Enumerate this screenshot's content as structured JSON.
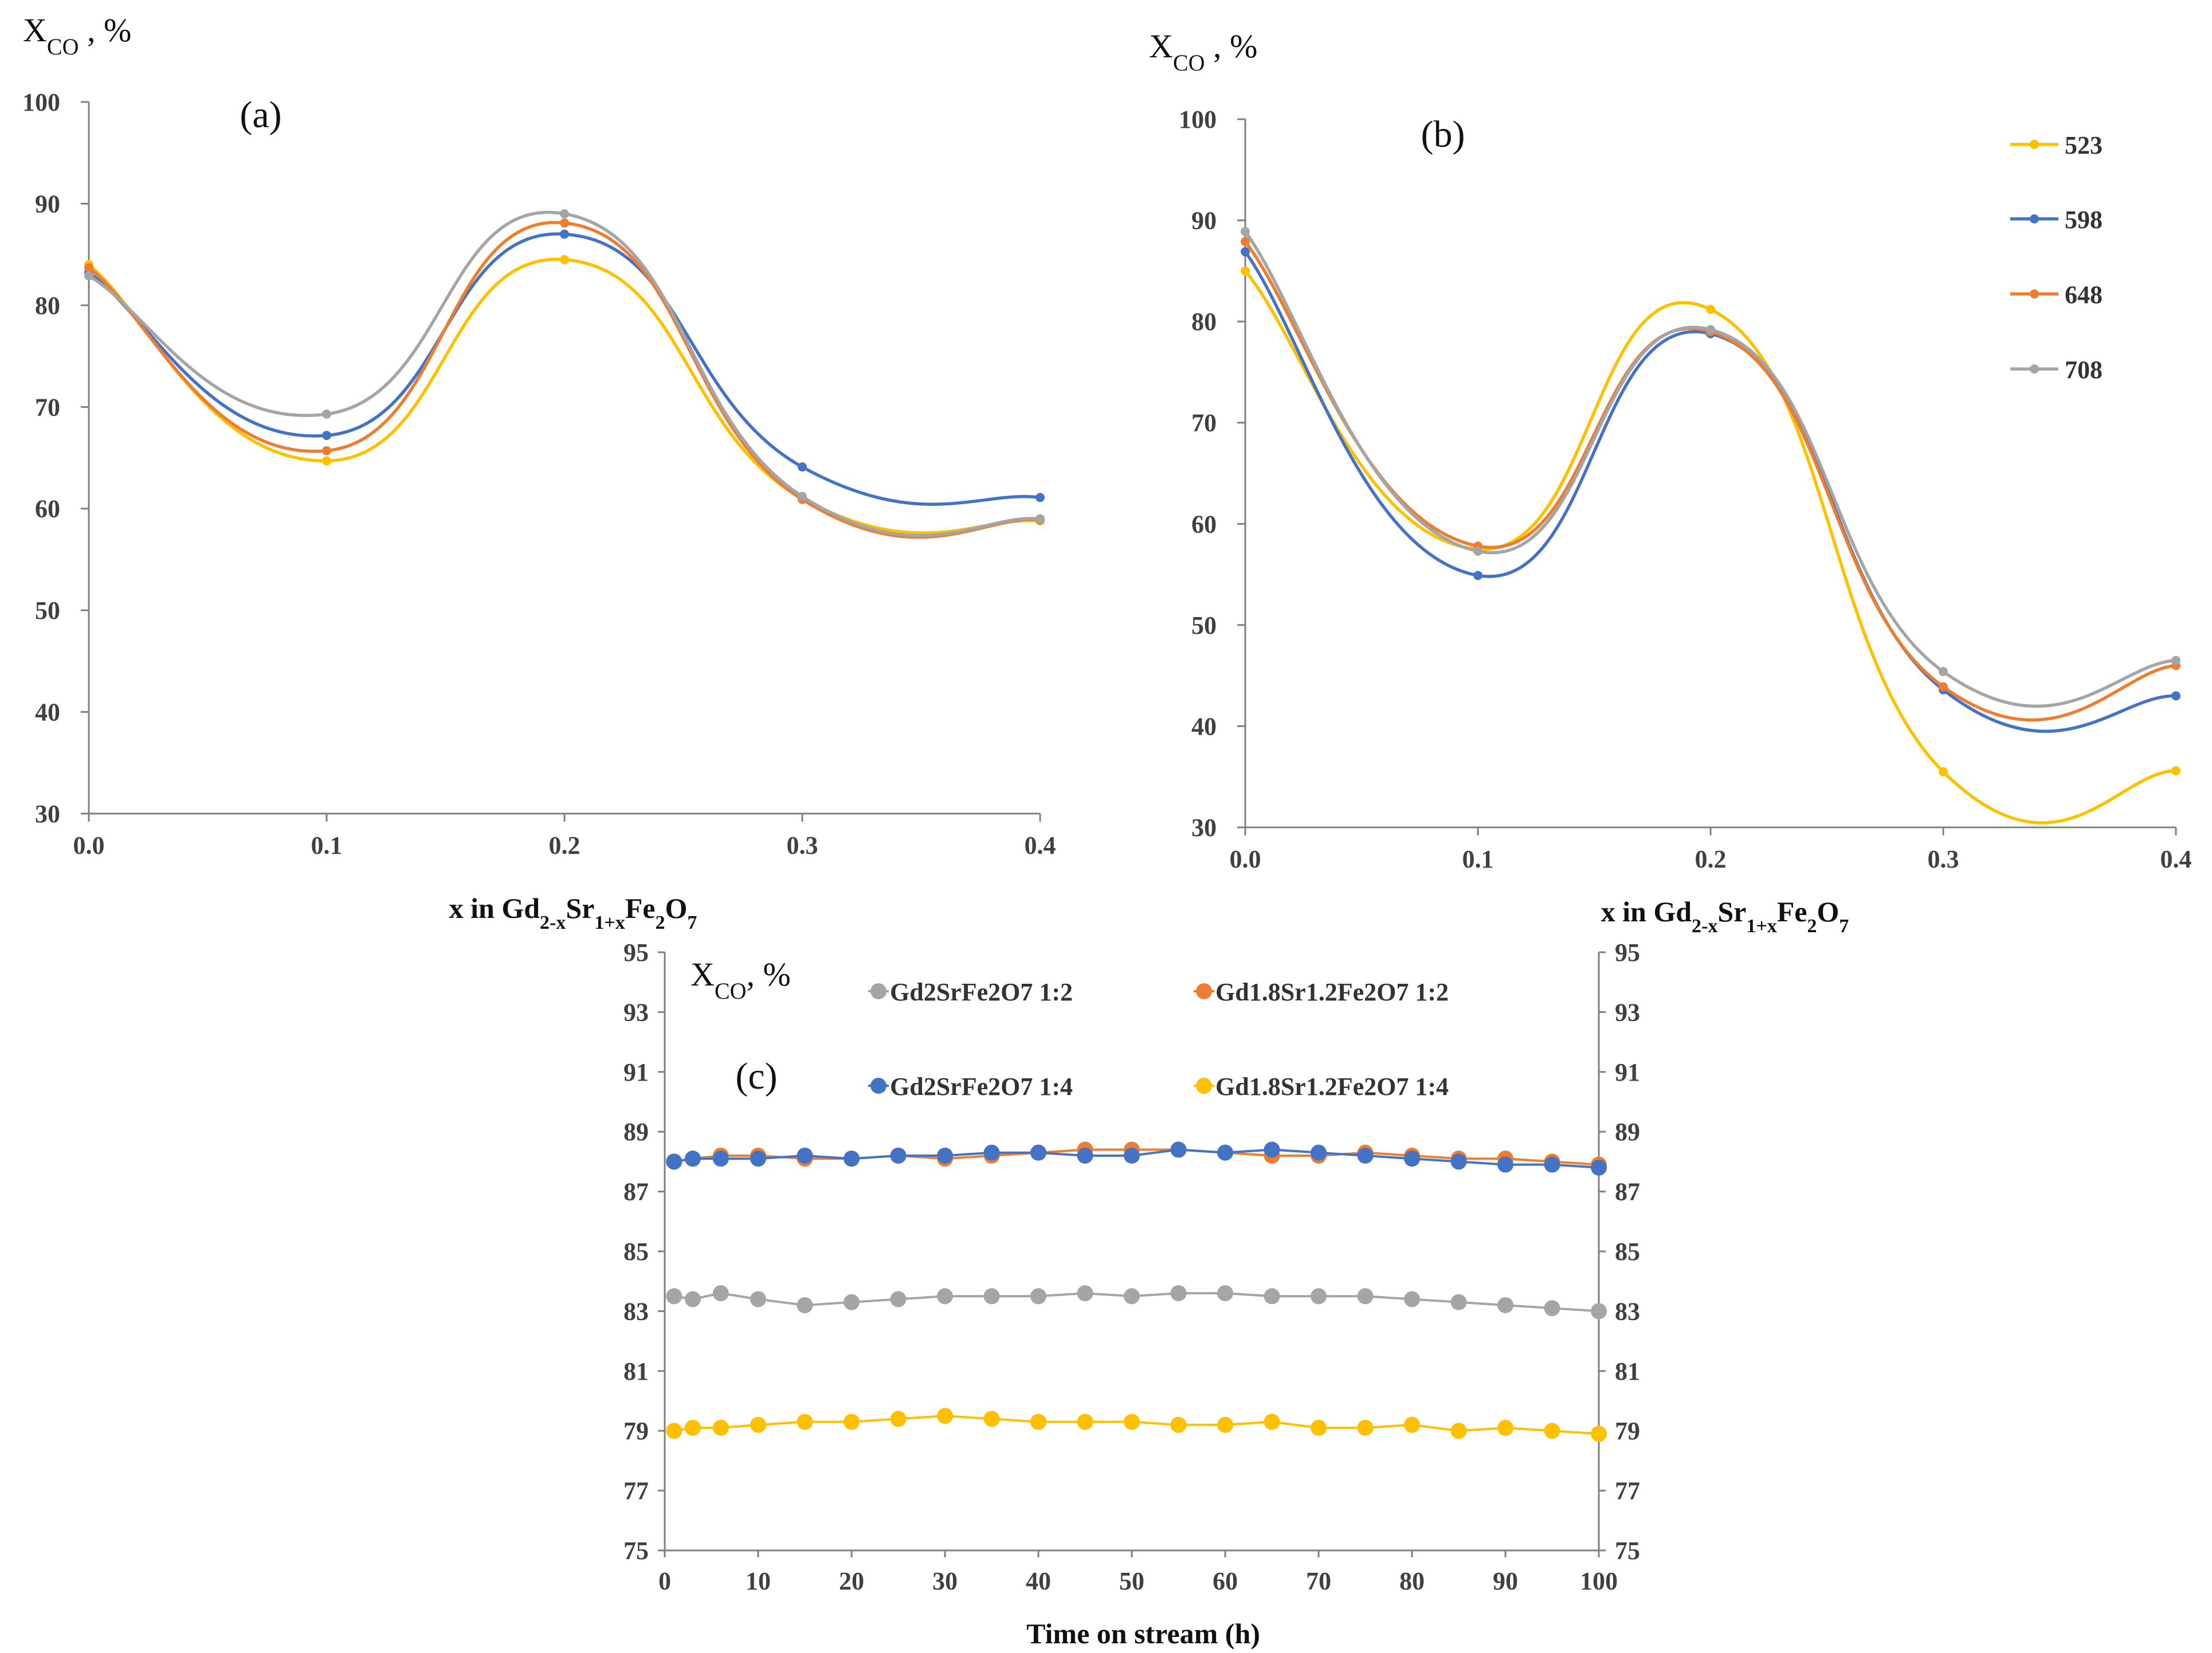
{
  "colors": {
    "523": "#FFC000",
    "598": "#4472C4",
    "648": "#ED7D31",
    "708": "#A5A5A5",
    "axis": "#7f7f7f"
  },
  "chart_data": [
    {
      "type": "line",
      "panel_label": "(a)",
      "ylabel": "X",
      "ylabel_sub": "CO",
      "ylabel_tail": " , %",
      "xlabel_parts": [
        "x in Gd",
        "2-x",
        "Sr",
        "1+x",
        "Fe",
        "2",
        "O",
        "7"
      ],
      "x": [
        0.0,
        0.1,
        0.2,
        0.3,
        0.4
      ],
      "x_ticks": [
        "0.0",
        "0.1",
        "0.2",
        "0.3",
        "0.4"
      ],
      "y_ticks": [
        "30",
        "40",
        "50",
        "60",
        "70",
        "80",
        "90",
        "100"
      ],
      "xlim": [
        0,
        0.4
      ],
      "ylim": [
        30,
        100
      ],
      "series": [
        {
          "name": "523",
          "values": [
            84.0,
            64.7,
            84.5,
            61.0,
            58.8
          ]
        },
        {
          "name": "598",
          "values": [
            83.2,
            67.2,
            87.0,
            64.1,
            61.1
          ]
        },
        {
          "name": "648",
          "values": [
            83.7,
            65.7,
            88.1,
            60.9,
            58.9
          ]
        },
        {
          "name": "708",
          "values": [
            82.9,
            69.3,
            89.0,
            61.2,
            59.0
          ]
        }
      ]
    },
    {
      "type": "line",
      "panel_label": "(b)",
      "ylabel": "X",
      "ylabel_sub": "CO",
      "ylabel_tail": " , %",
      "xlabel_parts": [
        "x in Gd",
        "2-x",
        "Sr",
        "1+x",
        "Fe",
        "2",
        "O",
        "7"
      ],
      "x": [
        0.0,
        0.1,
        0.2,
        0.3,
        0.4
      ],
      "x_ticks": [
        "0.0",
        "0.1",
        "0.2",
        "0.3",
        "0.4"
      ],
      "y_ticks": [
        "30",
        "40",
        "50",
        "60",
        "70",
        "80",
        "90",
        "100"
      ],
      "xlim": [
        0,
        0.4
      ],
      "ylim": [
        30,
        100
      ],
      "legend": [
        "523",
        "598",
        "648",
        "708"
      ],
      "series": [
        {
          "name": "523",
          "values": [
            85.0,
            57.5,
            81.2,
            35.5,
            35.6
          ]
        },
        {
          "name": "598",
          "values": [
            86.9,
            54.9,
            78.8,
            43.6,
            43.0
          ]
        },
        {
          "name": "648",
          "values": [
            87.9,
            57.8,
            79.0,
            43.9,
            46.0
          ]
        },
        {
          "name": "708",
          "values": [
            88.9,
            57.3,
            79.2,
            45.4,
            46.5
          ]
        }
      ]
    },
    {
      "type": "line",
      "panel_label": "(c)",
      "ylabel": "X",
      "ylabel_sub": "CO",
      "ylabel_tail": ", %",
      "xlabel": "Time on stream (h)",
      "x": [
        1,
        3,
        6,
        10,
        15,
        20,
        25,
        30,
        35,
        40,
        45,
        50,
        55,
        60,
        65,
        70,
        75,
        80,
        85,
        90,
        95,
        100
      ],
      "x_ticks": [
        "0",
        "10",
        "20",
        "30",
        "40",
        "50",
        "60",
        "70",
        "80",
        "90",
        "100"
      ],
      "y_ticks": [
        "75",
        "77",
        "79",
        "81",
        "83",
        "85",
        "87",
        "89",
        "91",
        "93",
        "95"
      ],
      "xlim": [
        0,
        100
      ],
      "ylim": [
        75,
        95
      ],
      "series": [
        {
          "name": "Gd2SrFe2O7 1:2",
          "color": "#A5A5A5",
          "values": [
            83.5,
            83.4,
            83.6,
            83.4,
            83.2,
            83.3,
            83.4,
            83.5,
            83.5,
            83.5,
            83.6,
            83.5,
            83.6,
            83.6,
            83.5,
            83.5,
            83.5,
            83.4,
            83.3,
            83.2,
            83.1,
            83.0
          ]
        },
        {
          "name": "Gd1.8Sr1.2Fe2O7 1:2",
          "color": "#ED7D31",
          "values": [
            88.0,
            88.1,
            88.2,
            88.2,
            88.1,
            88.1,
            88.2,
            88.1,
            88.2,
            88.3,
            88.4,
            88.4,
            88.4,
            88.3,
            88.2,
            88.2,
            88.3,
            88.2,
            88.1,
            88.1,
            88.0,
            87.9
          ]
        },
        {
          "name": "Gd2SrFe2O7 1:4",
          "color": "#4472C4",
          "values": [
            88.0,
            88.1,
            88.1,
            88.1,
            88.2,
            88.1,
            88.2,
            88.2,
            88.3,
            88.3,
            88.2,
            88.2,
            88.4,
            88.3,
            88.4,
            88.3,
            88.2,
            88.1,
            88.0,
            87.9,
            87.9,
            87.8
          ]
        },
        {
          "name": "Gd1.8Sr1.2Fe2O7 1:4",
          "color": "#FFC000",
          "values": [
            79.0,
            79.1,
            79.1,
            79.2,
            79.3,
            79.3,
            79.4,
            79.5,
            79.4,
            79.3,
            79.3,
            79.3,
            79.2,
            79.2,
            79.3,
            79.1,
            79.1,
            79.2,
            79.0,
            79.1,
            79.0,
            78.9
          ]
        }
      ]
    }
  ]
}
